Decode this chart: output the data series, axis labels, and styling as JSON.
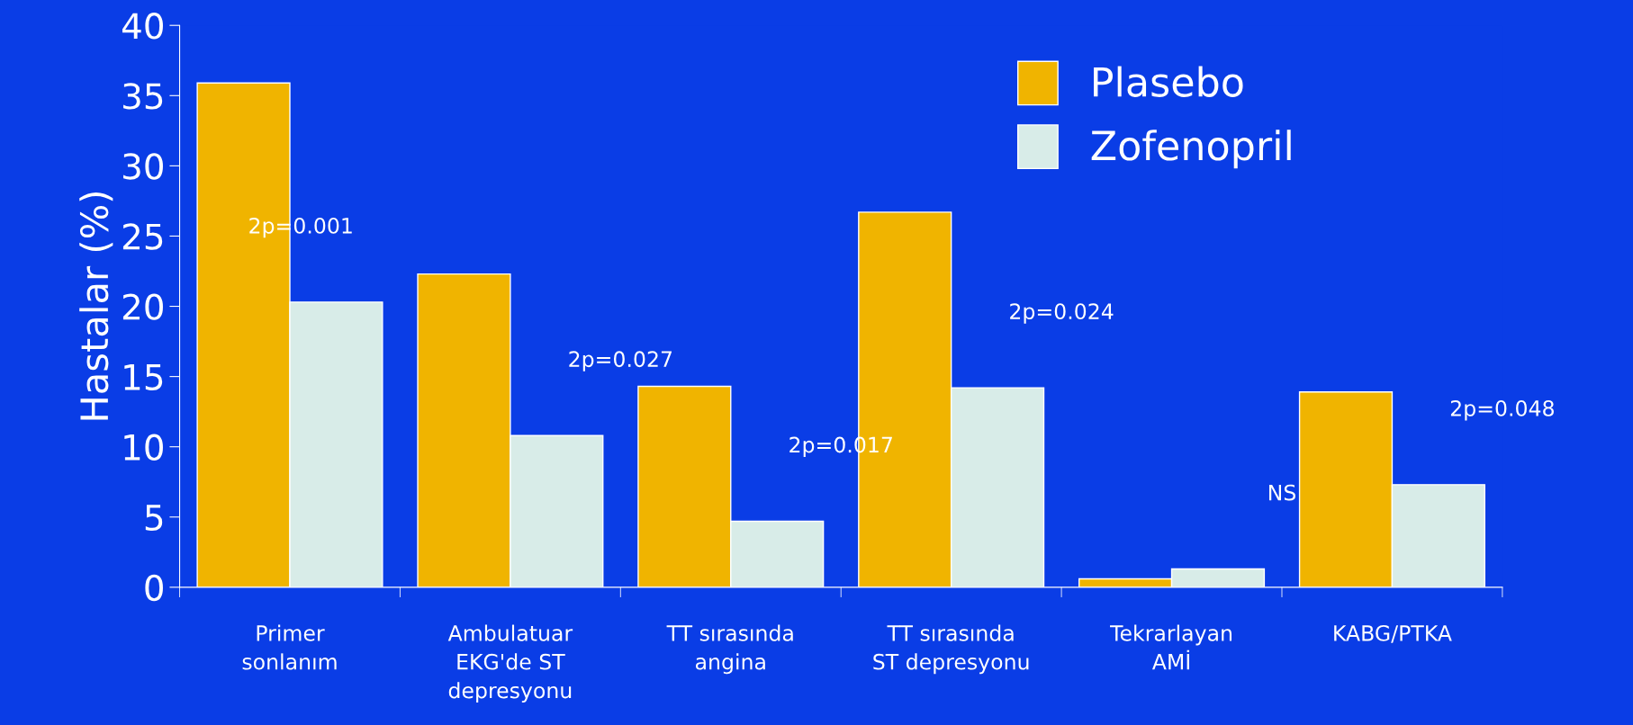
{
  "chart_data": {
    "type": "bar",
    "ylabel": "Hastalar (%)",
    "categories": [
      "Primer\nsonlanım",
      "Ambulatuar\nEKG'de ST\ndepresyonu",
      "TT sırasında\nangina",
      "TT sırasında\nST depresyonu",
      "Tekrarlayan\nAMİ",
      "KABG/PTKA"
    ],
    "series": [
      {
        "name": "Plasebo",
        "color": "#f0b400",
        "values": [
          35.9,
          22.3,
          14.3,
          26.7,
          0.6,
          13.9
        ]
      },
      {
        "name": "Zofenopril",
        "color": "#d8ece8",
        "values": [
          20.3,
          10.8,
          4.7,
          14.2,
          1.3,
          7.3
        ]
      }
    ],
    "ylim": [
      0,
      40
    ],
    "yticks": [
      0,
      5,
      10,
      15,
      20,
      25,
      30,
      35,
      40
    ],
    "legend": "top right",
    "annotations": [
      "2p=0.001",
      "2p=0.027",
      "2p=0.017",
      "2p=0.024",
      "NS",
      "2p=0.048"
    ]
  }
}
